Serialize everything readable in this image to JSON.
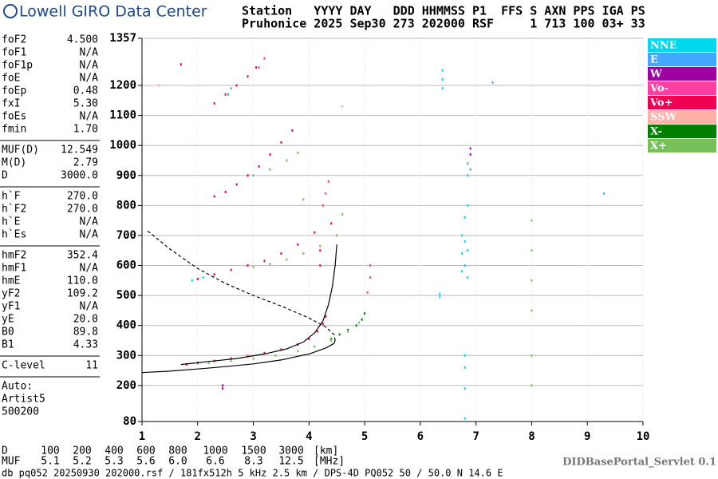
{
  "header": {
    "logo": "Lowell GIRO Data Center",
    "line1": "Station   YYYY DAY   DDD HHMMSS P1  FFS S AXN PPS IGA PS",
    "line2": "Pruhonice 2025 Sep30 273 202000 RSF     1 713 100 03+ 33"
  },
  "params": {
    "groups": [
      [
        [
          "foF2",
          "4.500"
        ],
        [
          "foF1",
          "N/A"
        ],
        [
          "foF1p",
          "N/A"
        ],
        [
          "foE",
          "N/A"
        ],
        [
          "foEp",
          "0.48"
        ],
        [
          "fxI",
          "5.30"
        ],
        [
          "foEs",
          "N/A"
        ],
        [
          "fmin",
          "1.70"
        ]
      ],
      [
        [
          "MUF(D)",
          "12.549"
        ],
        [
          "M(D)",
          "2.79"
        ],
        [
          "D",
          "3000.0"
        ]
      ],
      [
        [
          "h`F",
          "270.0"
        ],
        [
          "h`F2",
          "270.0"
        ],
        [
          "h`E",
          "N/A"
        ],
        [
          "h`Es",
          "N/A"
        ]
      ],
      [
        [
          "hmF2",
          "352.4"
        ],
        [
          "hmF1",
          "N/A"
        ],
        [
          "hmE",
          "110.0"
        ],
        [
          "yF2",
          "109.2"
        ],
        [
          "yF1",
          "N/A"
        ],
        [
          "yE",
          "20.0"
        ],
        [
          "B0",
          "89.8"
        ],
        [
          "B1",
          "4.33"
        ]
      ],
      [
        [
          "C-level",
          "11"
        ]
      ]
    ],
    "auto": [
      "Auto:",
      "Artist5",
      "500200"
    ]
  },
  "chart_data": {
    "type": "scatter",
    "xlim": [
      1,
      10
    ],
    "ylim": [
      80,
      1357
    ],
    "xticks": [
      1,
      2,
      3,
      4,
      5,
      6,
      7,
      8,
      9,
      10
    ],
    "yticks": [
      80,
      200,
      300,
      400,
      500,
      600,
      700,
      800,
      900,
      1000,
      1100,
      1200,
      1357
    ],
    "grid": true,
    "series": [
      {
        "name": "NNE",
        "color": "#00d8f0",
        "x": [
          6.4,
          6.4,
          6.4,
          6.75,
          6.75,
          6.75,
          6.8,
          6.8,
          6.8,
          6.85,
          6.85,
          6.85,
          6.8,
          6.8,
          6.35,
          6.35,
          6.8,
          6.8,
          1.9,
          2.1
        ],
        "values": [
          1250,
          1220,
          1190,
          580,
          640,
          700,
          600,
          680,
          760,
          560,
          650,
          800,
          190,
          90,
          505,
          495,
          260,
          300,
          550,
          560
        ]
      },
      {
        "name": "E",
        "color": "#40a8ff",
        "x": [
          6.85,
          6.85,
          6.9,
          2.55,
          2.6,
          7.3,
          9.3
        ],
        "values": [
          900,
          940,
          920,
          1170,
          1190,
          1210,
          840
        ]
      },
      {
        "name": "W",
        "color": "#a000a0",
        "x": [
          6.9,
          6.9,
          2.45,
          2.45
        ],
        "values": [
          970,
          990,
          190,
          200
        ]
      },
      {
        "name": "Vo-",
        "color": "#ff40a0",
        "x": [
          5.1,
          5.1,
          5.05,
          4.25,
          4.3,
          4.35,
          3.1,
          3.2
        ],
        "values": [
          560,
          600,
          510,
          800,
          840,
          880,
          1260,
          1290
        ]
      },
      {
        "name": "Vo+",
        "color": "#f00050",
        "x": [
          1.8,
          2.0,
          2.3,
          2.6,
          2.9,
          3.2,
          3.5,
          3.8,
          4.0,
          4.15,
          4.25,
          4.3,
          2.0,
          2.3,
          2.6,
          2.9,
          3.2,
          3.5,
          3.8,
          4.1,
          4.4,
          2.3,
          2.5,
          2.7,
          2.9,
          3.1,
          3.3,
          3.5,
          3.7,
          2.3,
          2.5,
          2.7,
          2.9,
          3.05,
          1.7,
          4.2,
          4.2
        ],
        "values": [
          270,
          275,
          282,
          290,
          298,
          308,
          320,
          337,
          355,
          380,
          405,
          430,
          555,
          570,
          585,
          600,
          615,
          640,
          670,
          710,
          740,
          830,
          845,
          870,
          900,
          930,
          970,
          1010,
          1050,
          1140,
          1170,
          1200,
          1230,
          1260,
          1270,
          600,
          650
        ]
      },
      {
        "name": "SSW",
        "color": "#ffb0a8",
        "x": [
          1.3,
          4.6
        ],
        "values": [
          1200,
          1130
        ]
      },
      {
        "name": "X-",
        "color": "#008000",
        "x": [
          4.4,
          4.55,
          4.7,
          4.85,
          4.95,
          5.0
        ],
        "values": [
          355,
          370,
          385,
          400,
          420,
          440
        ]
      },
      {
        "name": "X+",
        "color": "#78c058",
        "x": [
          2.2,
          2.6,
          3.0,
          3.4,
          3.8,
          4.1,
          4.4,
          4.7,
          4.9,
          3.0,
          3.3,
          3.6,
          3.9,
          4.2,
          4.5,
          4.6,
          3.0,
          3.3,
          3.6,
          3.8,
          3.9,
          8.0,
          8.0,
          8.0,
          8.0,
          8.0,
          8.0
        ],
        "values": [
          275,
          282,
          290,
          300,
          315,
          330,
          350,
          380,
          410,
          595,
          605,
          620,
          640,
          665,
          700,
          770,
          900,
          920,
          950,
          975,
          820,
          200,
          300,
          450,
          550,
          650,
          750
        ]
      }
    ],
    "lines": [
      {
        "style": "solid",
        "x": [
          1,
          1.5,
          2,
          2.5,
          3,
          3.5,
          4,
          4.3,
          4.45,
          4.47
        ],
        "values": [
          243,
          248,
          255,
          263,
          272,
          285,
          305,
          325,
          340,
          350
        ]
      },
      {
        "style": "solid",
        "x": [
          1.7,
          2.2,
          2.7,
          3.2,
          3.6,
          3.9,
          4.1,
          4.25,
          4.35,
          4.42,
          4.47,
          4.5
        ],
        "values": [
          270,
          280,
          290,
          305,
          322,
          345,
          375,
          415,
          470,
          530,
          600,
          670
        ]
      },
      {
        "style": "dashed",
        "x": [
          1.1,
          1.5,
          2,
          2.5,
          3,
          3.5,
          4,
          4.3,
          4.45,
          4.47
        ],
        "values": [
          715,
          655,
          590,
          540,
          500,
          465,
          425,
          395,
          370,
          350
        ]
      }
    ]
  },
  "bottom": {
    "d_label": "D",
    "d": [
      "100",
      "200",
      "400",
      "600",
      "800",
      "1000",
      "1500",
      "3000"
    ],
    "d_unit": "[km]",
    "muf_label": "MUF",
    "muf": [
      "5.1",
      "5.2",
      "5.3",
      "5.6",
      "6.0",
      "6.6",
      "8.3",
      "12.5"
    ],
    "muf_unit": "[MHz]"
  },
  "footer": {
    "left": "db pq052 20250930 202000.rsf / 181fx512h 5 kHz 2.5 km / DPS-4D PQ052 50 / 50.0 N 14.6 E",
    "right": "DIDBasePortal_Servlet 0.1"
  }
}
